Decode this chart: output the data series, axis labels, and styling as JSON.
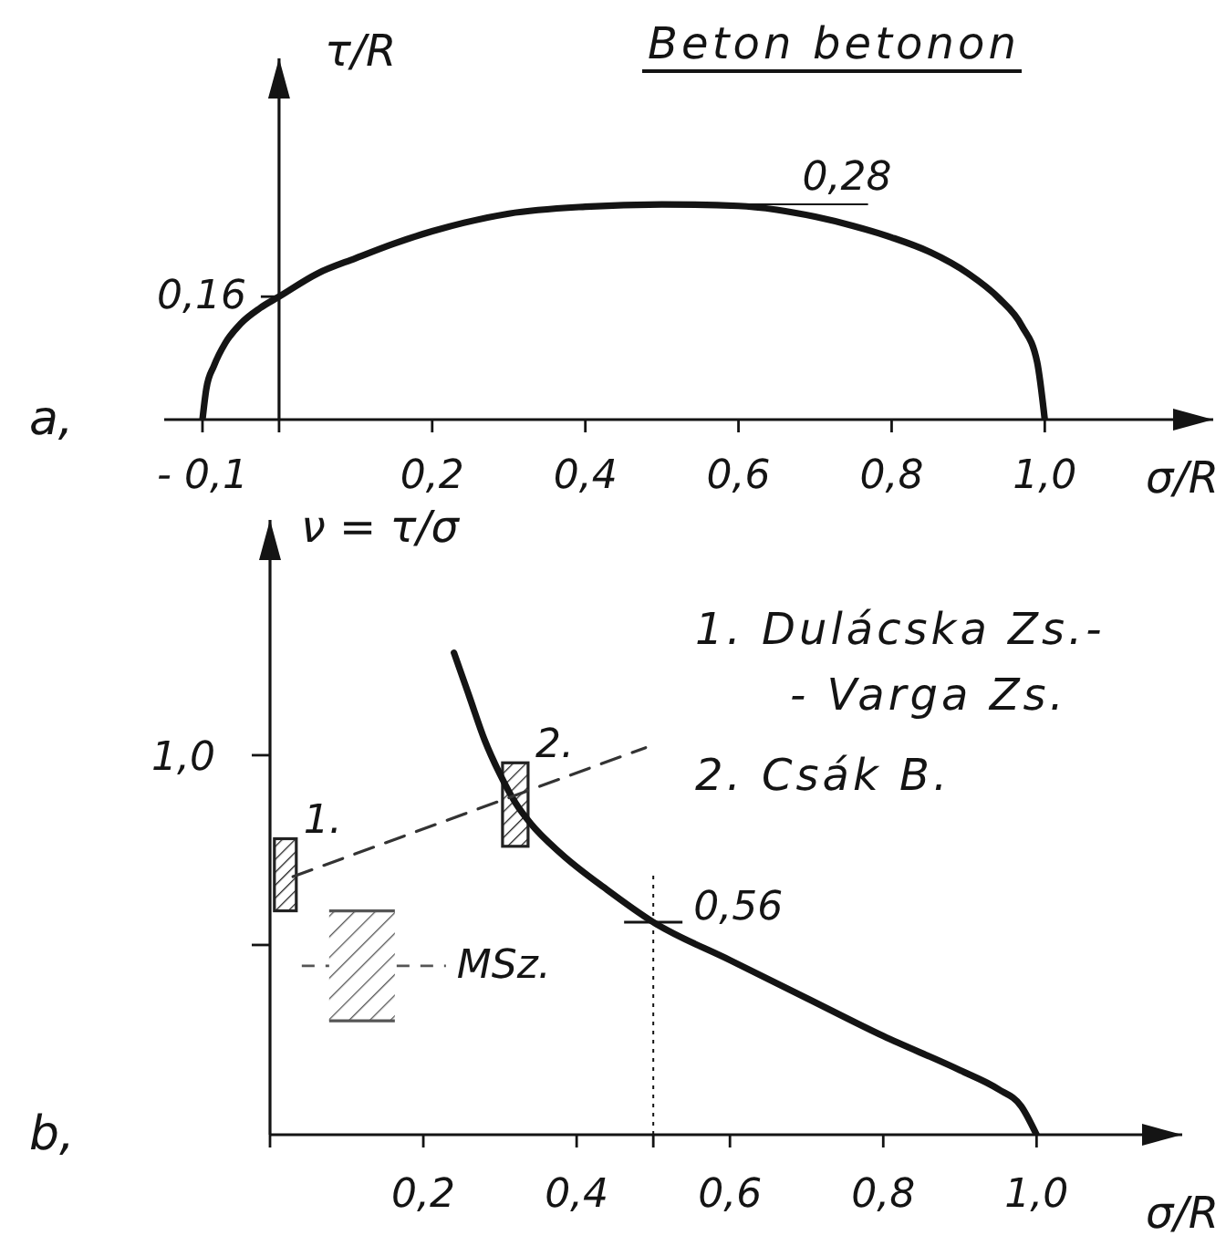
{
  "chart_data": [
    {
      "type": "line",
      "title": "Beton betonon",
      "xlabel": "σ/R",
      "ylabel": "τ/R",
      "xlim": [
        -0.15,
        1.22
      ],
      "ylim": [
        0,
        0.47
      ],
      "xticks": [
        {
          "value": -0.1,
          "label": "- 0,1"
        },
        {
          "value": 0,
          "label": null
        },
        {
          "value": 0.2,
          "label": "0,2"
        },
        {
          "value": 0.4,
          "label": "0,4"
        },
        {
          "value": 0.6,
          "label": "0,6"
        },
        {
          "value": 0.8,
          "label": "0,8"
        },
        {
          "value": 1,
          "label": "1,0"
        }
      ],
      "marker": "none",
      "series": [
        {
          "color": "#141414",
          "x": [
            -0.1,
            -0.095,
            -0.085,
            -0.07,
            -0.05,
            -0.025,
            0,
            0.05,
            0.1,
            0.15,
            0.2,
            0.3,
            0.4,
            0.5,
            0.6,
            0.65,
            0.7,
            0.75,
            0.8,
            0.85,
            0.9,
            0.94,
            0.97,
            0.99,
            1.0
          ],
          "values": [
            0,
            0.04,
            0.07,
            0.1,
            0.125,
            0.145,
            0.16,
            0.19,
            0.21,
            0.229,
            0.245,
            0.268,
            0.277,
            0.28,
            0.278,
            0.273,
            0.264,
            0.252,
            0.237,
            0.218,
            0.19,
            0.158,
            0.122,
            0.075,
            0
          ],
          "value_labels": [
            null,
            null,
            null,
            null,
            null,
            null,
            "0,16",
            null,
            null,
            null,
            null,
            null,
            null,
            null,
            null,
            null,
            null,
            null,
            null,
            null,
            null,
            null,
            null,
            null,
            null
          ]
        }
      ],
      "annotations": [
        "a,",
        {
          "text": "0,28",
          "x": 0.55,
          "y": 0.28
        }
      ]
    },
    {
      "type": "line",
      "xlabel": "σ/R",
      "ylabel": "ν = τ/σ",
      "xlim": [
        0,
        1.19
      ],
      "ylim": [
        0,
        1.62
      ],
      "xticks": [
        {
          "value": 0,
          "label": null
        },
        {
          "value": 0.2,
          "label": "0,2"
        },
        {
          "value": 0.4,
          "label": "0,4"
        },
        {
          "value": 0.5,
          "label": null
        },
        {
          "value": 0.6,
          "label": "0,6"
        },
        {
          "value": 0.8,
          "label": "0,8"
        },
        {
          "value": 1,
          "label": "1,0"
        }
      ],
      "yticks": [
        {
          "value": 0.5,
          "label": null
        },
        {
          "value": 1,
          "label": "1,0"
        }
      ],
      "marker": "none",
      "series": [
        {
          "color": "#141414",
          "x": [
            0.24,
            0.26,
            0.28,
            0.3,
            0.32,
            0.34,
            0.38,
            0.44,
            0.5,
            0.6,
            0.7,
            0.8,
            0.9,
            0.95,
            0.98,
            1.0
          ],
          "values": [
            1.27,
            1.155,
            1.04,
            0.95,
            0.875,
            0.82,
            0.74,
            0.645,
            0.56,
            0.46,
            0.36,
            0.26,
            0.17,
            0.12,
            0.075,
            0
          ],
          "value_labels": [
            null,
            null,
            null,
            null,
            null,
            null,
            null,
            null,
            "0,56",
            null,
            null,
            null,
            null,
            null,
            null,
            null
          ]
        },
        {
          "type": "line",
          "line_style": "dashed",
          "color": "#333333",
          "x": [
            0.03,
            0.49
          ],
          "values": [
            0.68,
            1.02
          ]
        },
        {
          "type": "bar",
          "name": "1.",
          "color": "#222222",
          "x": [
            0.02
          ],
          "base": [
            0.59
          ],
          "values": [
            0.19
          ]
        },
        {
          "type": "bar",
          "name": "2.",
          "color": "#222222",
          "x": [
            0.32
          ],
          "base": [
            0.76
          ],
          "values": [
            0.22
          ]
        },
        {
          "type": "bar",
          "name": "MSz.",
          "color": "#555555",
          "x": [
            0.12
          ],
          "base": [
            0.3
          ],
          "values": [
            0.29
          ]
        }
      ],
      "annotations": [
        "b,",
        "1. Dulácska Zs.-\n- Varga Zs.",
        "2. Csák B."
      ]
    }
  ]
}
